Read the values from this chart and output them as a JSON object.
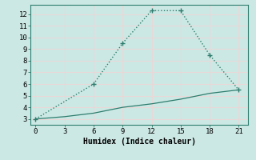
{
  "title": "",
  "xlabel": "Humidex (Indice chaleur)",
  "bg_color": "#cce8e4",
  "grid_color": "#e8d8d8",
  "line_color": "#2e7d6e",
  "line1_x": [
    0,
    6,
    9,
    12,
    15,
    18,
    21
  ],
  "line1_y": [
    3,
    6,
    9.5,
    12.3,
    12.3,
    8.5,
    5.5
  ],
  "line2_x": [
    0,
    3,
    6,
    9,
    12,
    15,
    18,
    21
  ],
  "line2_y": [
    3,
    3.2,
    3.5,
    4.0,
    4.3,
    4.7,
    5.2,
    5.5
  ],
  "xlim": [
    -0.5,
    22
  ],
  "ylim": [
    2.5,
    12.8
  ],
  "xticks": [
    0,
    3,
    6,
    9,
    12,
    15,
    18,
    21
  ],
  "yticks": [
    3,
    4,
    5,
    6,
    7,
    8,
    9,
    10,
    11,
    12
  ]
}
